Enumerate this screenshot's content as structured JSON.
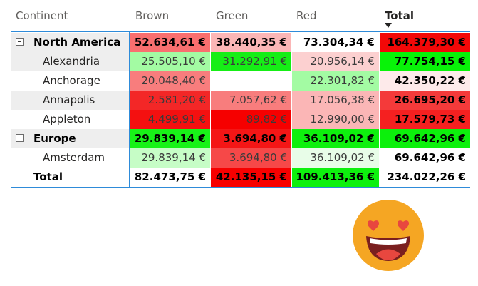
{
  "matrix": {
    "columns": {
      "row_header": "Continent",
      "brown": "Brown",
      "green": "Green",
      "red": "Red",
      "total": "Total"
    },
    "rows": [
      {
        "label": "North America",
        "level": 0,
        "expandable": true,
        "shaded": true,
        "values": [
          "52.634,61 €",
          "38.440,35 €",
          "73.304,34 €",
          "164.379,30 €"
        ],
        "colors": [
          "#f96f6f",
          "#fbb6b6",
          "#ffffff",
          "#f30808"
        ]
      },
      {
        "label": "Alexandria",
        "level": 1,
        "expandable": false,
        "shaded": true,
        "values": [
          "25.505,10 €",
          "31.292,91 €",
          "20.956,14 €",
          "77.754,15 €"
        ],
        "colors": [
          "#a3fba3",
          "#16ee16",
          "#fcd0d0",
          "#08f308"
        ]
      },
      {
        "label": "Anchorage",
        "level": 1,
        "expandable": false,
        "shaded": false,
        "values": [
          "20.048,40 €",
          "",
          "22.301,82 €",
          "42.350,22 €"
        ],
        "colors": [
          "#f87d7d",
          "#ffffff",
          "#a3fba3",
          "#fdeaea"
        ]
      },
      {
        "label": "Annapolis",
        "level": 1,
        "expandable": false,
        "shaded": true,
        "values": [
          "2.581,20 €",
          "7.057,62 €",
          "17.056,38 €",
          "26.695,20 €"
        ],
        "colors": [
          "#f32727",
          "#f87d7d",
          "#fbb6b6",
          "#f43a3a"
        ]
      },
      {
        "label": "Appleton",
        "level": 1,
        "expandable": false,
        "shaded": false,
        "values": [
          "4.499,91 €",
          "89,82 €",
          "12.990,00 €",
          "17.579,73 €"
        ],
        "colors": [
          "#f41010",
          "#f60000",
          "#fbb6b6",
          "#f52020"
        ]
      },
      {
        "label": "Europe",
        "level": 0,
        "expandable": true,
        "shaded": true,
        "values": [
          "29.839,14 €",
          "3.694,80 €",
          "36.109,02 €",
          "69.642,96 €"
        ],
        "colors": [
          "#18f218",
          "#f41616",
          "#0ef00e",
          "#0cf00c"
        ]
      },
      {
        "label": "Amsterdam",
        "level": 1,
        "expandable": false,
        "shaded": false,
        "values": [
          "29.839,14 €",
          "3.694,80 €",
          "36.109,02 €",
          "69.642,96 €"
        ],
        "colors": [
          "#c6fdc6",
          "#f64848",
          "#e8fde8",
          "#ffffff"
        ]
      },
      {
        "label": "Total",
        "level": 0,
        "expandable": false,
        "shaded": false,
        "values": [
          "82.473,75 €",
          "42.135,15 €",
          "109.413,36 €",
          "234.022,26 €"
        ],
        "colors": [
          "#ffffff",
          "#f70000",
          "#0ef00e",
          "#ffffff"
        ]
      }
    ]
  },
  "sort_indicator": "descending",
  "decoration": {
    "emoji": "heart-eyes-emoji",
    "face_color": "#f5a623",
    "heart_color": "#e8473f"
  }
}
